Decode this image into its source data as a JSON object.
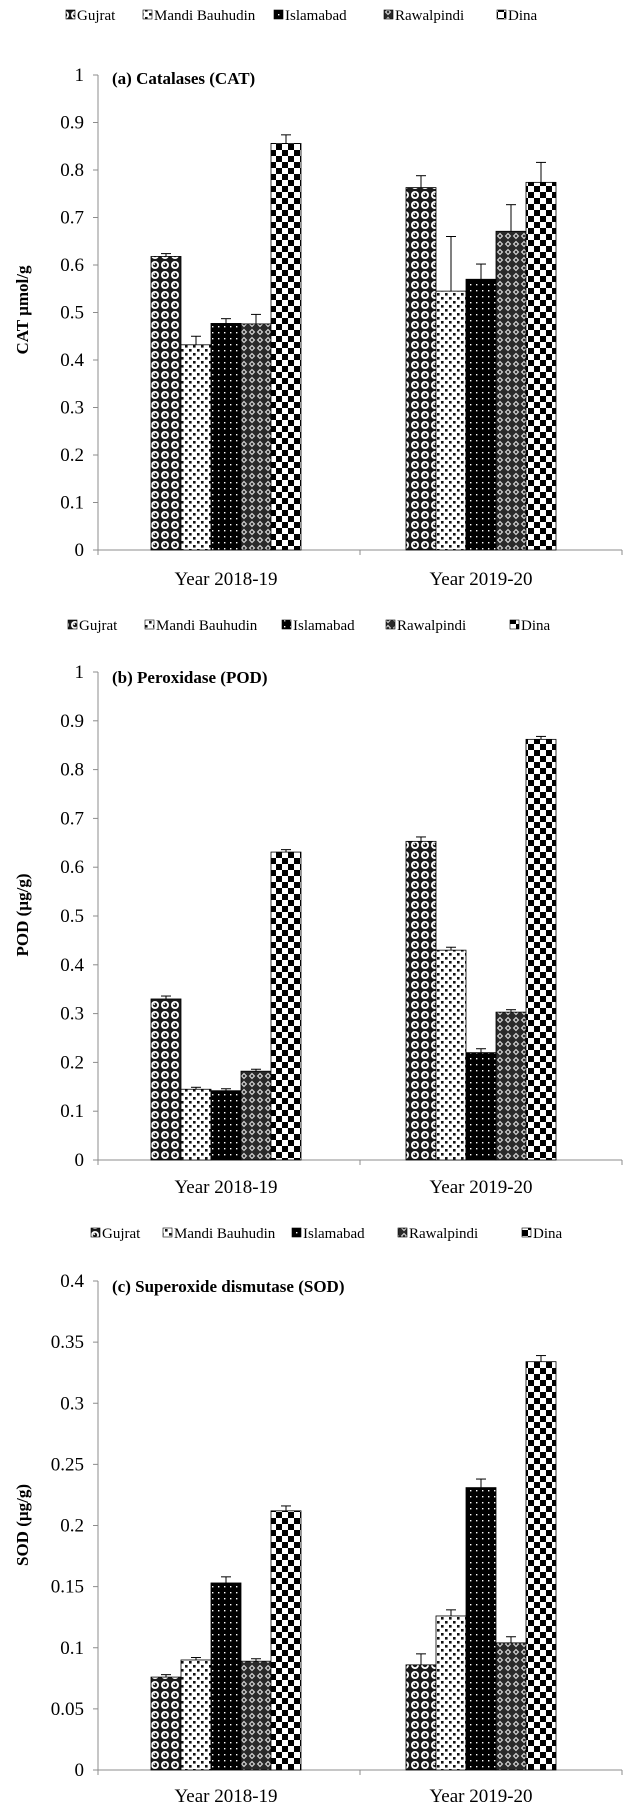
{
  "chart_data": [
    {
      "type": "bar",
      "title": "(a) Catalases (CAT)",
      "ylabel": "CAT µmol/g",
      "xlabel": "",
      "categories": [
        "Year 2018-19",
        "Year 2019-20"
      ],
      "ylim": [
        0,
        1
      ],
      "yticks": [
        "0",
        "0.1",
        "0.2",
        "0.3",
        "0.4",
        "0.5",
        "0.6",
        "0.7",
        "0.8",
        "0.9",
        "1"
      ],
      "legend_position": "top",
      "grid": false,
      "series": [
        {
          "name": "Gujrat",
          "pattern": "circles",
          "values": [
            0.618,
            0.763
          ],
          "errors": [
            0.006,
            0.025
          ]
        },
        {
          "name": "Mandi Bauhudin",
          "pattern": "dots",
          "values": [
            0.432,
            0.545
          ],
          "errors": [
            0.018,
            0.115
          ]
        },
        {
          "name": "Islamabad",
          "pattern": "dark-dots",
          "values": [
            0.477,
            0.57
          ],
          "errors": [
            0.01,
            0.032
          ]
        },
        {
          "name": "Rawalpindi",
          "pattern": "diamonds",
          "values": [
            0.476,
            0.671
          ],
          "errors": [
            0.02,
            0.056
          ]
        },
        {
          "name": "Dina",
          "pattern": "checker",
          "values": [
            0.856,
            0.774
          ],
          "errors": [
            0.018,
            0.042
          ]
        }
      ]
    },
    {
      "type": "bar",
      "title": "(b) Peroxidase (POD)",
      "ylabel": "POD (µg/g)",
      "xlabel": "",
      "categories": [
        "Year 2018-19",
        "Year 2019-20"
      ],
      "ylim": [
        0,
        1
      ],
      "yticks": [
        "0",
        "0.1",
        "0.2",
        "0.3",
        "0.4",
        "0.5",
        "0.6",
        "0.7",
        "0.8",
        "0.9",
        "1"
      ],
      "legend_position": "top",
      "grid": false,
      "series": [
        {
          "name": "Gujrat",
          "pattern": "circles",
          "values": [
            0.33,
            0.653
          ],
          "errors": [
            0.006,
            0.009
          ]
        },
        {
          "name": "Mandi Bauhudin",
          "pattern": "dots",
          "values": [
            0.145,
            0.43
          ],
          "errors": [
            0.004,
            0.006
          ]
        },
        {
          "name": "Islamabad",
          "pattern": "dark-dots",
          "values": [
            0.142,
            0.22
          ],
          "errors": [
            0.004,
            0.008
          ]
        },
        {
          "name": "Rawalpindi",
          "pattern": "diamonds",
          "values": [
            0.182,
            0.303
          ],
          "errors": [
            0.004,
            0.005
          ]
        },
        {
          "name": "Dina",
          "pattern": "checker",
          "values": [
            0.631,
            0.862
          ],
          "errors": [
            0.005,
            0.006
          ]
        }
      ]
    },
    {
      "type": "bar",
      "title": "(c) Superoxide dismutase (SOD)",
      "ylabel": "SOD (µg/g)",
      "xlabel": "",
      "categories": [
        "Year 2018-19",
        "Year 2019-20"
      ],
      "ylim": [
        0,
        0.4
      ],
      "yticks": [
        "0",
        "0.05",
        "0.1",
        "0.15",
        "0.2",
        "0.25",
        "0.3",
        "0.35",
        "0.4"
      ],
      "legend_position": "top",
      "grid": false,
      "series": [
        {
          "name": "Gujrat",
          "pattern": "circles",
          "values": [
            0.076,
            0.086
          ],
          "errors": [
            0.002,
            0.009
          ]
        },
        {
          "name": "Mandi Bauhudin",
          "pattern": "dots",
          "values": [
            0.09,
            0.126
          ],
          "errors": [
            0.002,
            0.005
          ]
        },
        {
          "name": "Islamabad",
          "pattern": "dark-dots",
          "values": [
            0.153,
            0.231
          ],
          "errors": [
            0.005,
            0.007
          ]
        },
        {
          "name": "Rawalpindi",
          "pattern": "diamonds",
          "values": [
            0.089,
            0.104
          ],
          "errors": [
            0.002,
            0.005
          ]
        },
        {
          "name": "Dina",
          "pattern": "checker",
          "values": [
            0.212,
            0.334
          ],
          "errors": [
            0.004,
            0.005
          ]
        }
      ]
    }
  ]
}
